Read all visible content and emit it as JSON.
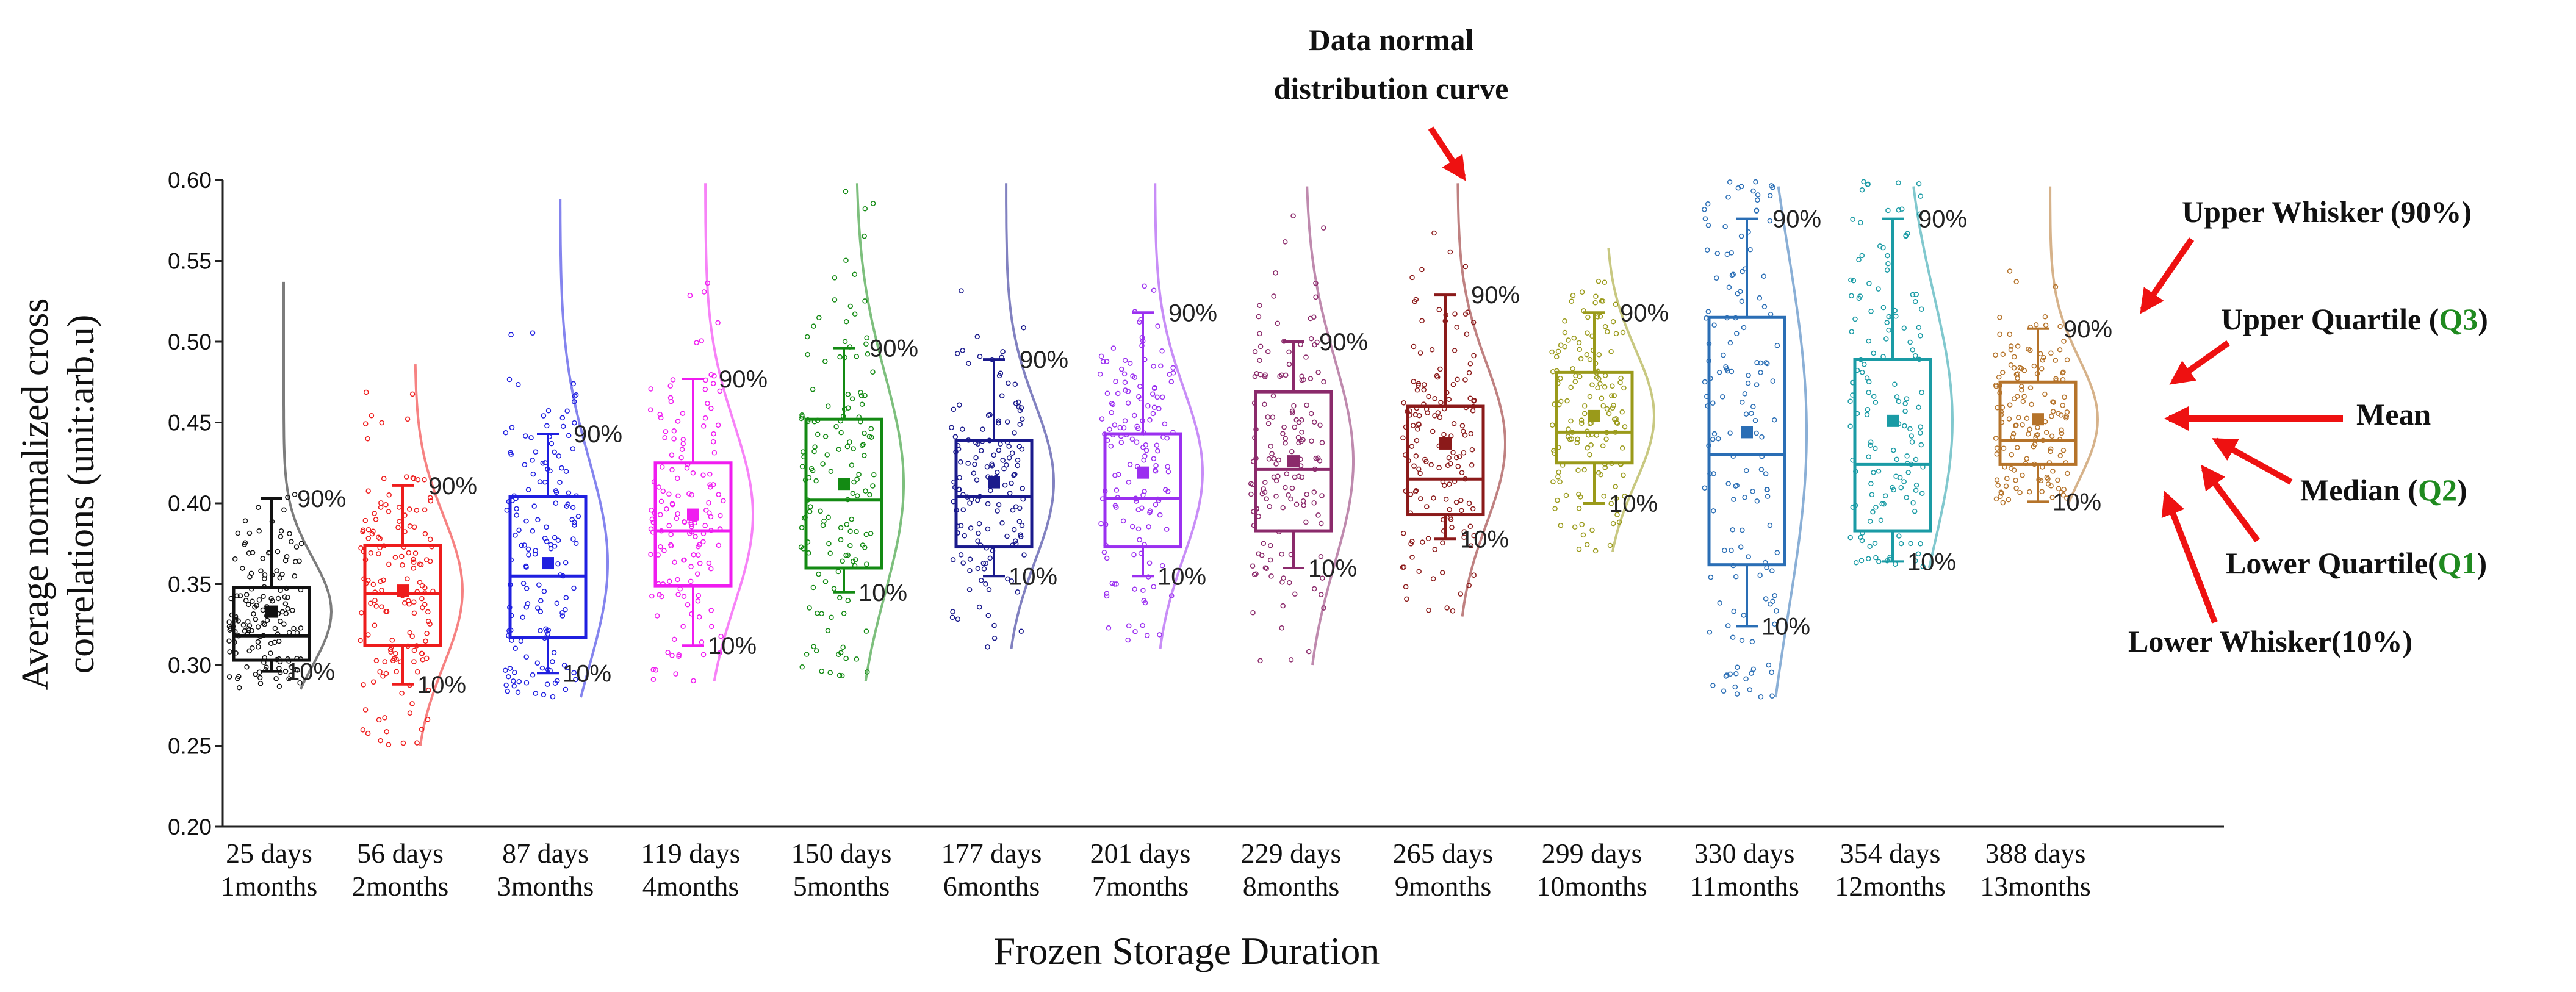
{
  "chart_data": {
    "type": "box",
    "ylabel_lines": [
      "Average normalized cross",
      "correlations (unit:arb.u)"
    ],
    "xlabel": "Frozen Storage Duration",
    "ylim": [
      0.2,
      0.6
    ],
    "yticks": [
      "0.20",
      "0.25",
      "0.30",
      "0.35",
      "0.40",
      "0.45",
      "0.50",
      "0.55",
      "0.60"
    ],
    "upper_whisker_label": "90%",
    "lower_whisker_label": "10%",
    "groups": [
      {
        "days": "25 days",
        "months": "1months",
        "color": "#111111",
        "q1": 0.303,
        "median": 0.318,
        "q3": 0.348,
        "mean": 0.333,
        "p10": 0.296,
        "p90": 0.403,
        "dmin": 0.285,
        "dmax": 0.52
      },
      {
        "days": "56 days",
        "months": "2months",
        "color": "#ee1c1c",
        "q1": 0.312,
        "median": 0.344,
        "q3": 0.374,
        "mean": 0.346,
        "p10": 0.288,
        "p90": 0.411,
        "dmin": 0.25,
        "dmax": 0.47
      },
      {
        "days": "87 days",
        "months": "3months",
        "color": "#1f1fe0",
        "q1": 0.317,
        "median": 0.355,
        "q3": 0.404,
        "mean": 0.363,
        "p10": 0.295,
        "p90": 0.443,
        "dmin": 0.28,
        "dmax": 0.57
      },
      {
        "days": "119 days",
        "months": "4months",
        "color": "#f01cf0",
        "q1": 0.349,
        "median": 0.383,
        "q3": 0.425,
        "mean": 0.393,
        "p10": 0.312,
        "p90": 0.477,
        "dmin": 0.29,
        "dmax": 0.58
      },
      {
        "days": "150 days",
        "months": "5months",
        "color": "#138a13",
        "q1": 0.36,
        "median": 0.402,
        "q3": 0.452,
        "mean": 0.412,
        "p10": 0.345,
        "p90": 0.496,
        "dmin": 0.29,
        "dmax": 0.6
      },
      {
        "days": "177 days",
        "months": "6months",
        "color": "#1a1a8c",
        "q1": 0.373,
        "median": 0.404,
        "q3": 0.439,
        "mean": 0.413,
        "p10": 0.355,
        "p90": 0.489,
        "dmin": 0.31,
        "dmax": 0.6
      },
      {
        "days": "201 days",
        "months": "7months",
        "color": "#9b30f0",
        "q1": 0.373,
        "median": 0.403,
        "q3": 0.443,
        "mean": 0.419,
        "p10": 0.355,
        "p90": 0.518,
        "dmin": 0.31,
        "dmax": 0.6
      },
      {
        "days": "229 days",
        "months": "8months",
        "color": "#8b2a6b",
        "q1": 0.383,
        "median": 0.421,
        "q3": 0.469,
        "mean": 0.426,
        "p10": 0.36,
        "p90": 0.5,
        "dmin": 0.3,
        "dmax": 0.58
      },
      {
        "days": "265 days",
        "months": "9months",
        "color": "#8b1a1a",
        "q1": 0.393,
        "median": 0.415,
        "q3": 0.46,
        "mean": 0.437,
        "p10": 0.378,
        "p90": 0.529,
        "dmin": 0.33,
        "dmax": 0.6
      },
      {
        "days": "299 days",
        "months": "10months",
        "color": "#9a9a1a",
        "q1": 0.425,
        "median": 0.444,
        "q3": 0.481,
        "mean": 0.454,
        "p10": 0.4,
        "p90": 0.518,
        "dmin": 0.37,
        "dmax": 0.54
      },
      {
        "days": "330 days",
        "months": "11months",
        "color": "#2a6eb5",
        "q1": 0.362,
        "median": 0.43,
        "q3": 0.515,
        "mean": 0.444,
        "p10": 0.324,
        "p90": 0.576,
        "dmin": 0.28,
        "dmax": 0.6
      },
      {
        "days": "354 days",
        "months": "12months",
        "color": "#1a9ba5",
        "q1": 0.383,
        "median": 0.424,
        "q3": 0.489,
        "mean": 0.451,
        "p10": 0.364,
        "p90": 0.576,
        "dmin": 0.36,
        "dmax": 0.6
      },
      {
        "days": "388 days",
        "months": "13months",
        "color": "#b5732a",
        "q1": 0.424,
        "median": 0.439,
        "q3": 0.475,
        "mean": 0.452,
        "p10": 0.401,
        "p90": 0.508,
        "dmin": 0.4,
        "dmax": 0.6
      }
    ],
    "annotations": {
      "curve_label_lines": [
        "Data normal",
        "distribution curve"
      ],
      "upper_whisker": {
        "text": "Upper Whisker (90%)"
      },
      "upper_quartile": {
        "text": "Upper Quartile (",
        "code": "Q3",
        "tail": ")"
      },
      "mean": {
        "text": "Mean"
      },
      "median": {
        "text": "Median (",
        "code": "Q2",
        "tail": ")"
      },
      "lower_quartile": {
        "text": "Lower Quartile(",
        "code": "Q1",
        "tail": ")"
      },
      "lower_whisker": {
        "text": "Lower Whisker(10%)"
      }
    },
    "arrow_color": "#ee1111",
    "code_color": "#1f8a1f"
  }
}
